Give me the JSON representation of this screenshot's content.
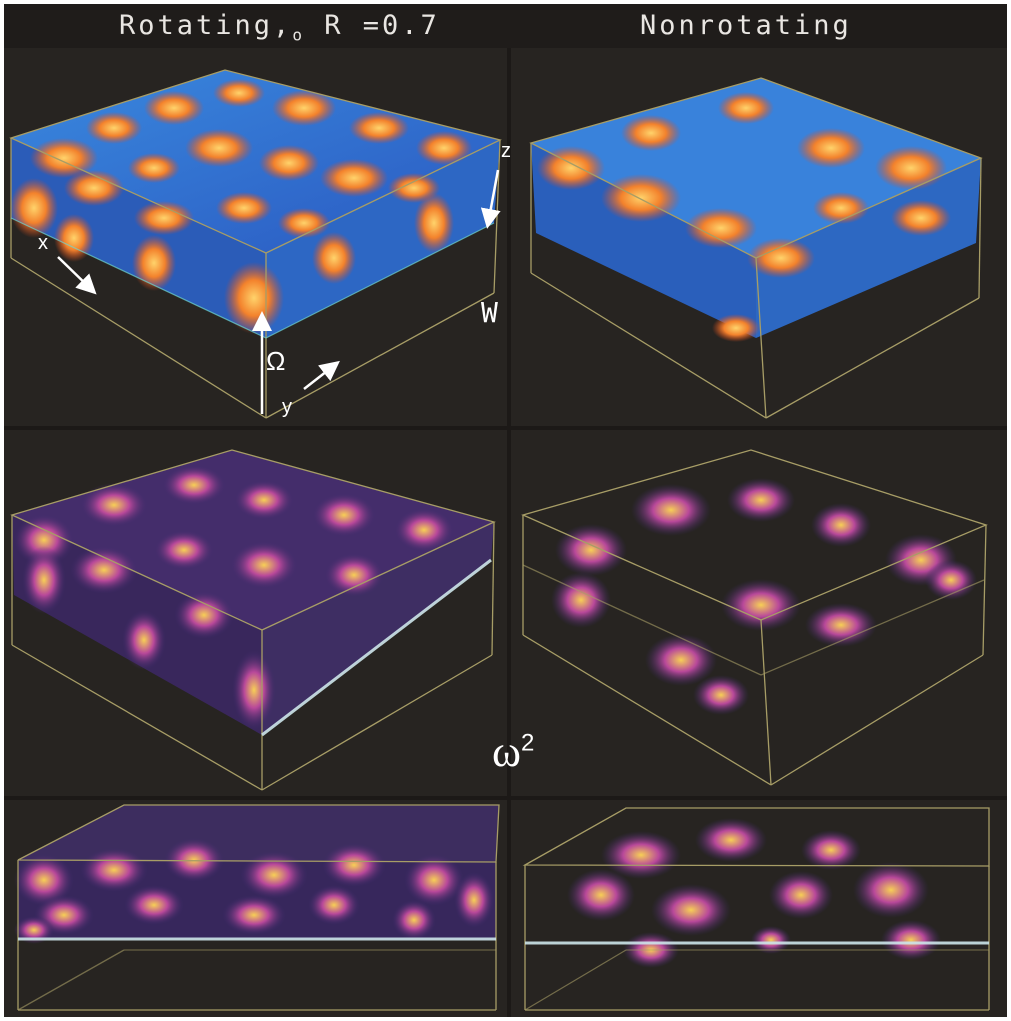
{
  "header": {
    "left_title_pre": "Rotating,",
    "left_title_sub": "o",
    "left_title_post": " R =0.7",
    "right_title": "Nonrotating"
  },
  "labels": {
    "w_field": "W",
    "vorticity_symbol": "ω",
    "vorticity_power": "2",
    "omega": "Ω",
    "axis_x": "x",
    "axis_y": "y",
    "axis_z": "z"
  },
  "rows": [
    {
      "row": "velocity",
      "colormap": "blue-orange"
    },
    {
      "row": "vorticity-oblique",
      "colormap": "purple-yellow"
    },
    {
      "row": "vorticity-side",
      "colormap": "purple-yellow"
    }
  ],
  "colors": {
    "background": "#262321",
    "box_edge": "#a79d66",
    "upflow": "#f07a2a",
    "downflow": "#2f7fe0",
    "vort_low": "#3b2a6b",
    "vort_mid": "#a13fa0",
    "vort_high": "#f6c34a"
  }
}
